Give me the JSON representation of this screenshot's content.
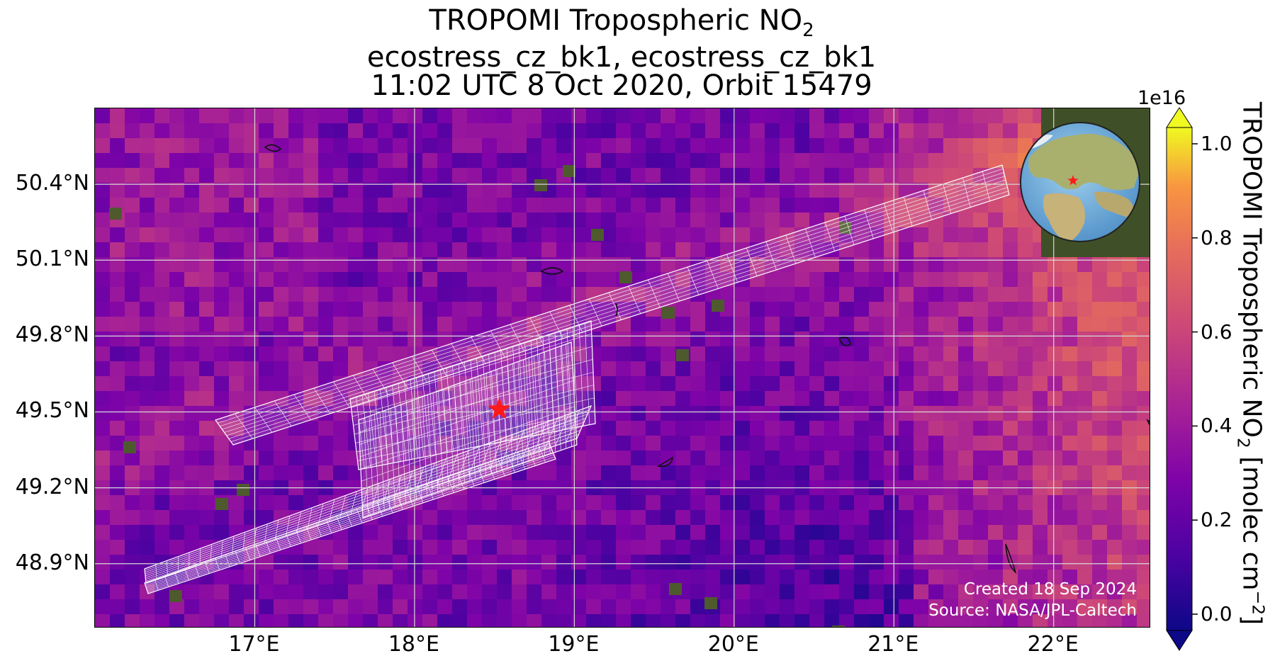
{
  "title": {
    "line1_prefix": "TROPOMI Tropospheric NO",
    "line1_sub": "2",
    "line2": "ecostress_cz_bk1, ecostress_cz_bk1",
    "line3": "11:02 UTC 8 Oct 2020, Orbit 15479"
  },
  "map": {
    "extent_lon": [
      16.0,
      22.6
    ],
    "extent_lat": [
      48.65,
      50.7
    ],
    "lat_ticks": [
      {
        "value": 50.4,
        "label": "50.4°N"
      },
      {
        "value": 50.1,
        "label": "50.1°N"
      },
      {
        "value": 49.8,
        "label": "49.8°N"
      },
      {
        "value": 49.5,
        "label": "49.5°N"
      },
      {
        "value": 49.2,
        "label": "49.2°N"
      },
      {
        "value": 48.9,
        "label": "48.9°N"
      }
    ],
    "lon_ticks": [
      {
        "value": 17,
        "label": "17°E"
      },
      {
        "value": 18,
        "label": "18°E"
      },
      {
        "value": 19,
        "label": "19°E"
      },
      {
        "value": 20,
        "label": "20°E"
      },
      {
        "value": 21,
        "label": "21°E"
      },
      {
        "value": 22,
        "label": "22°E"
      }
    ],
    "grid": true,
    "target_marker": {
      "lon": 18.53,
      "lat": 49.51,
      "symbol": "star",
      "color": "#ff1a1a"
    },
    "inset_globe": {
      "position": "top-right",
      "marker_color": "#ff1a1a"
    },
    "credit_line1": "Created 18 Sep 2024",
    "credit_line2": "Source: NASA/JPL-Caltech"
  },
  "colorbar": {
    "colormap": "plasma",
    "exponent_label": "1e16",
    "range": [
      0.0,
      1.0
    ],
    "extend": "both",
    "ticks": [
      {
        "value": 1.0,
        "label": "1.0"
      },
      {
        "value": 0.8,
        "label": "0.8"
      },
      {
        "value": 0.6,
        "label": "0.6"
      },
      {
        "value": 0.4,
        "label": "0.4"
      },
      {
        "value": 0.2,
        "label": "0.2"
      },
      {
        "value": 0.0,
        "label": "0.0"
      }
    ],
    "label_prefix": "TROPOMI Tropospheric NO",
    "label_sub": "2",
    "label_units_prefix": " [molec cm",
    "label_units_sup": "−2",
    "label_units_suffix": "]"
  }
}
